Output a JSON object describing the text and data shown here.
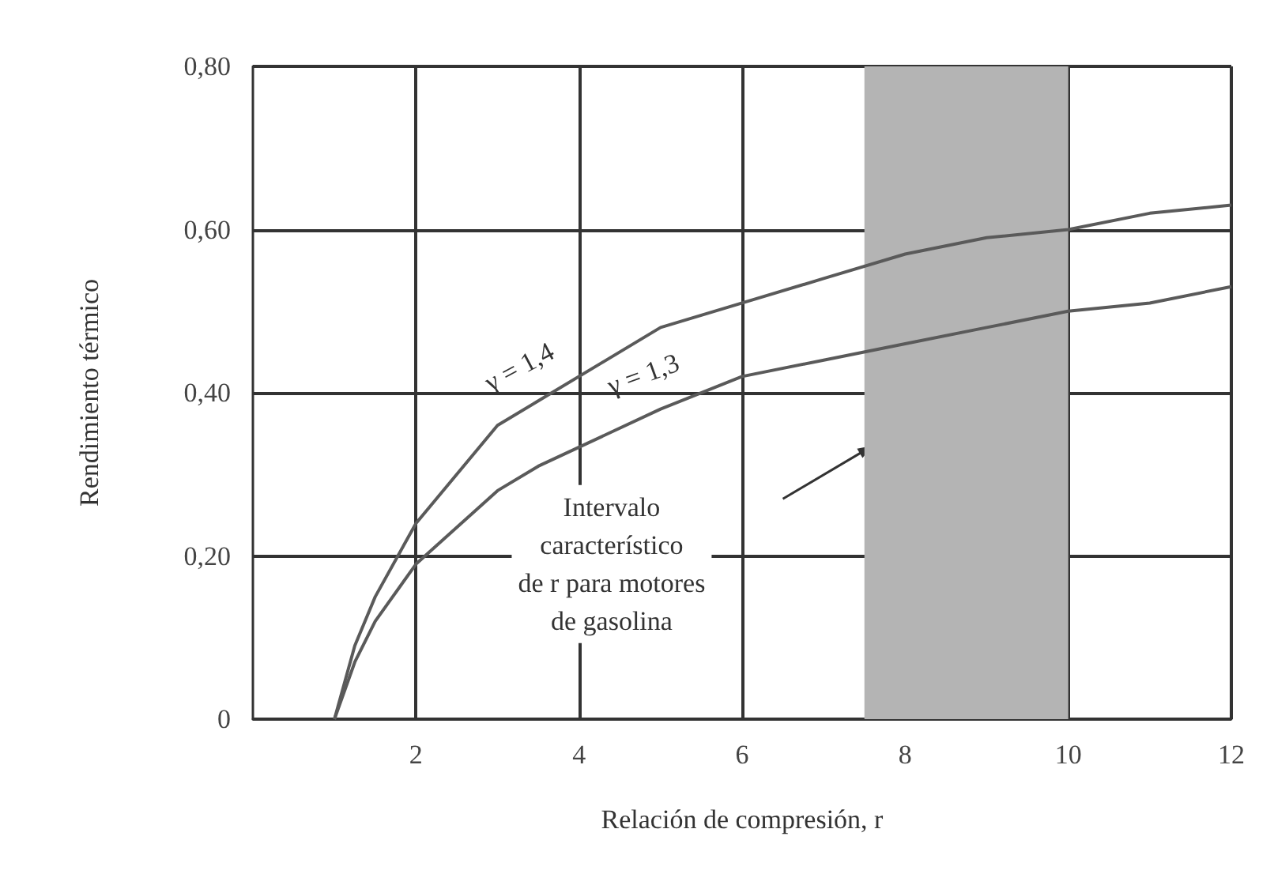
{
  "chart_data": {
    "type": "line",
    "xlabel": "Relación de compresión, r",
    "ylabel": "Rendimiento térmico",
    "xlim": [
      0,
      12
    ],
    "xticks": [
      2,
      4,
      6,
      8,
      10,
      12
    ],
    "ylim": [
      0,
      0.8
    ],
    "yticks": [
      {
        "value": 0,
        "label": "0"
      },
      {
        "value": 0.2,
        "label": "0,20"
      },
      {
        "value": 0.4,
        "label": "0,40"
      },
      {
        "value": 0.6,
        "label": "0,60"
      },
      {
        "value": 0.8,
        "label": "0,80"
      }
    ],
    "grid": true,
    "legend": false,
    "marker": "none",
    "line_style": "solid",
    "x": [
      1,
      1.25,
      1.5,
      2,
      3,
      3.5,
      5,
      6,
      7,
      8,
      9,
      10,
      11,
      12
    ],
    "series": [
      {
        "name": "γ = 1,4",
        "color": "#5a5a5a",
        "values": [
          0,
          0.09,
          0.15,
          0.24,
          0.36,
          0.39,
          0.48,
          0.51,
          0.54,
          0.57,
          0.59,
          0.6,
          0.62,
          0.63
        ]
      },
      {
        "name": "γ = 1,3",
        "color": "#5a5a5a",
        "values": [
          0,
          0.07,
          0.12,
          0.19,
          0.28,
          0.31,
          0.38,
          0.42,
          0.44,
          0.46,
          0.48,
          0.5,
          0.51,
          0.53
        ]
      }
    ],
    "bands": [
      {
        "axis": "x",
        "from": 7.5,
        "to": 10,
        "color": "#b4b4b4"
      }
    ],
    "annotations": [
      "Intervalo\ncaracterístico\nde r para motores\nde gasolina"
    ]
  }
}
